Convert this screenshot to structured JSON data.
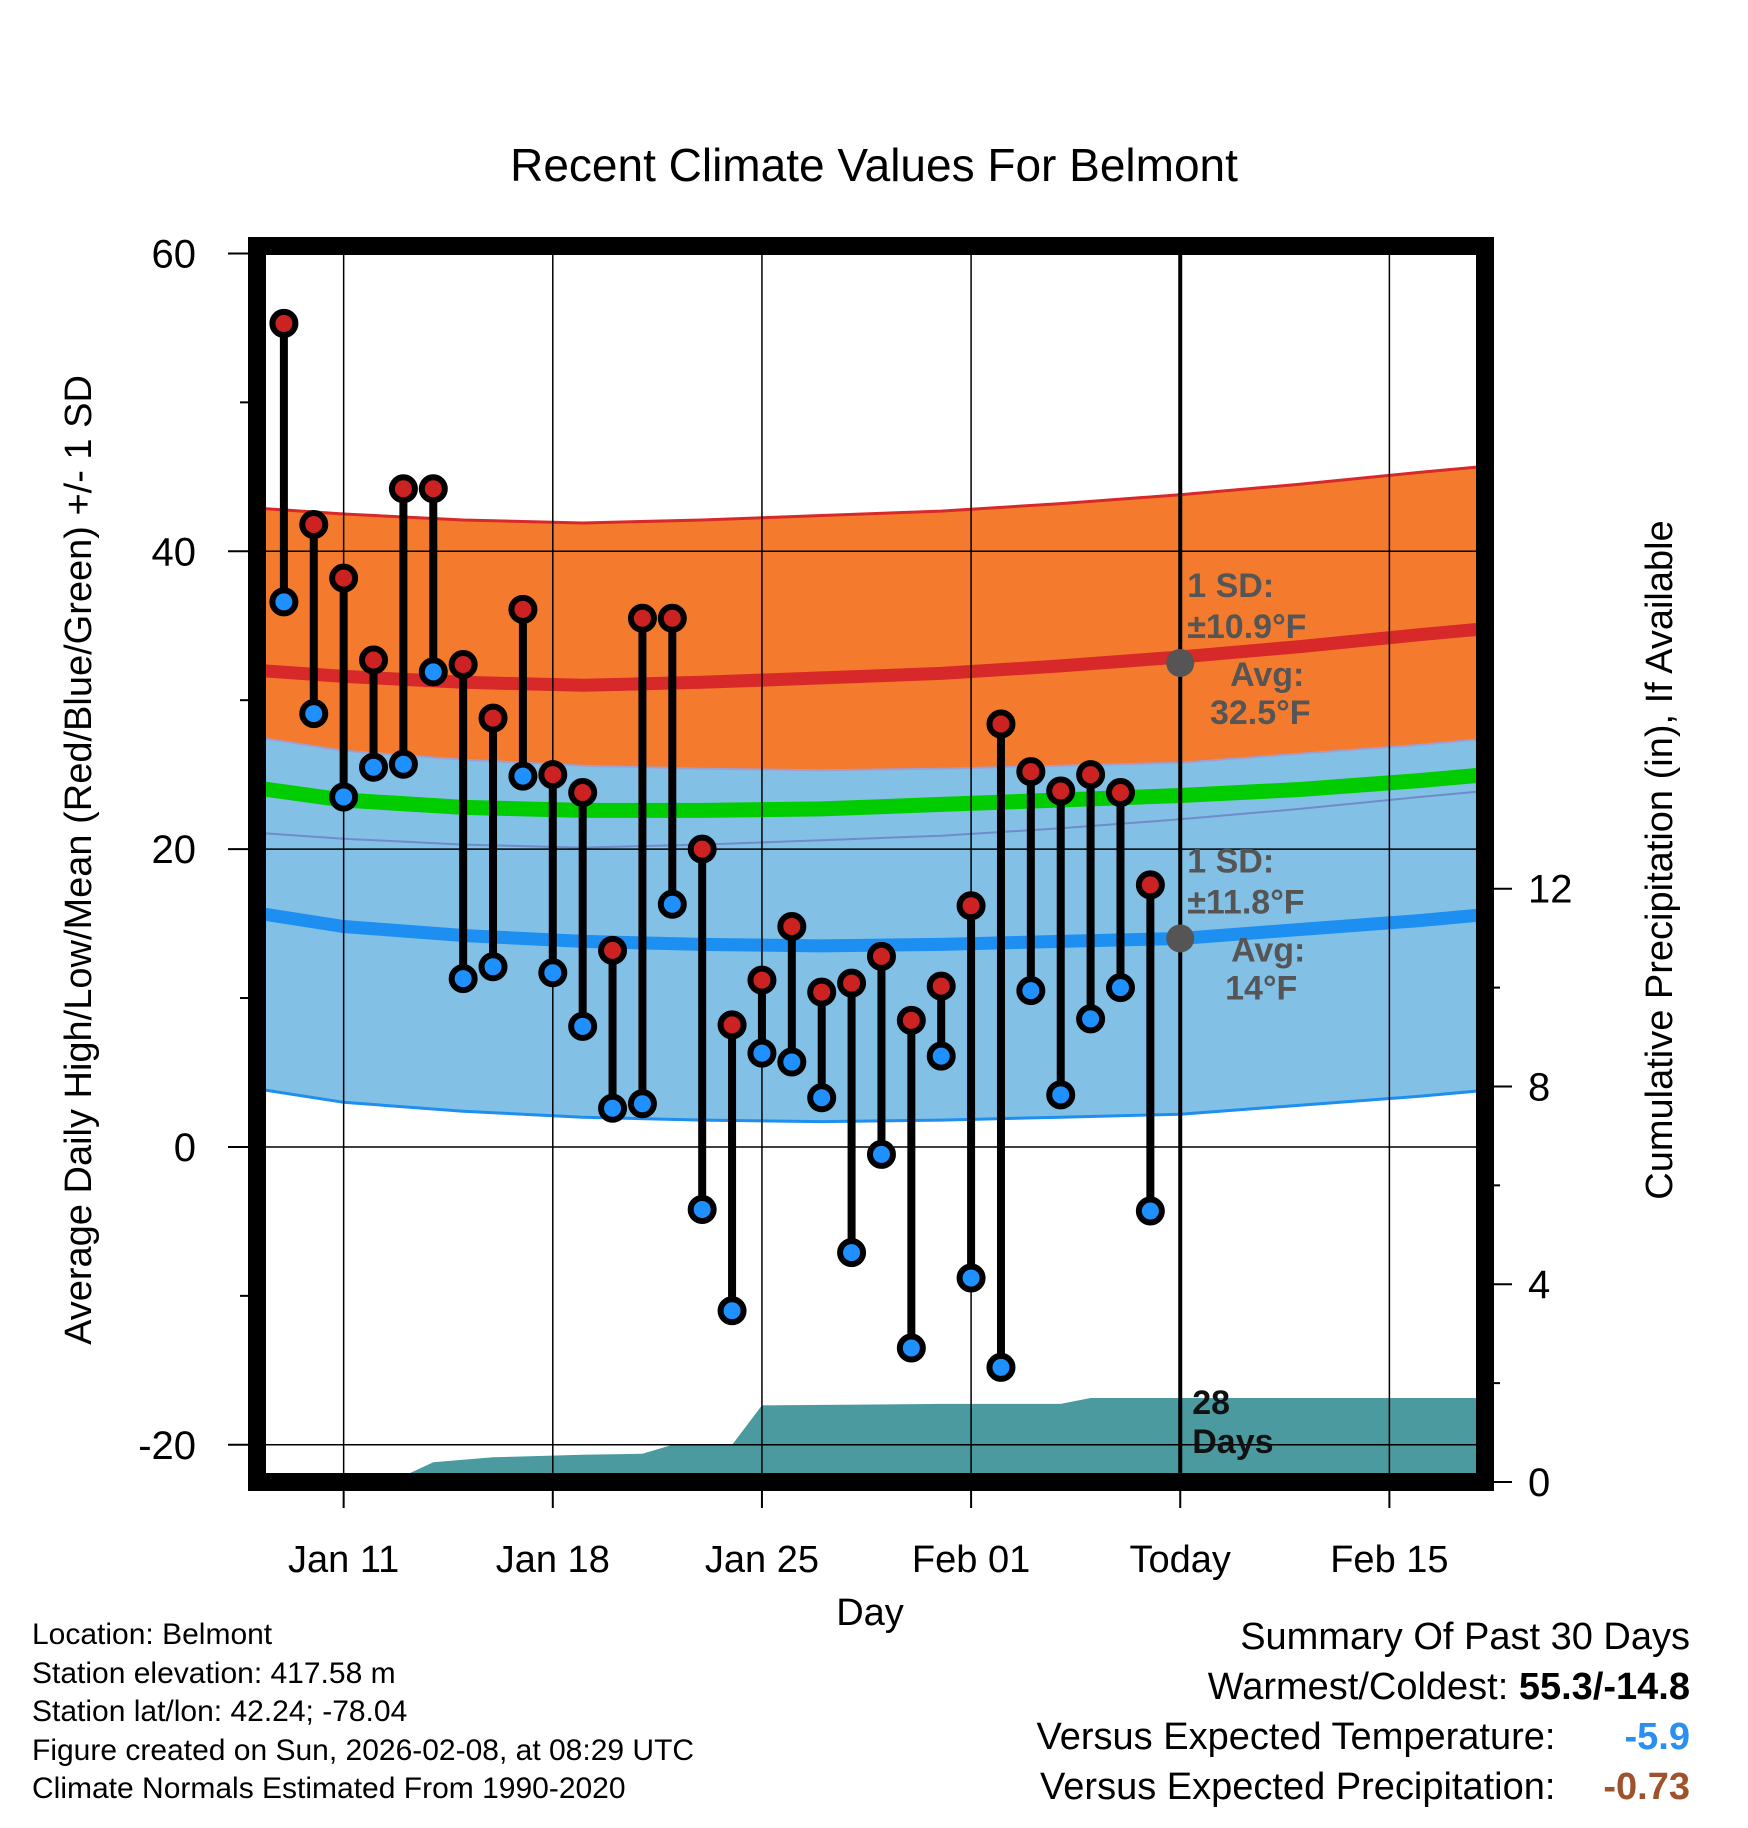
{
  "chart_data": {
    "type": "line",
    "title": "Recent Climate Values For Belmont",
    "xlabel": "Day",
    "ylabel": "Average Daily High/Low/Mean (Red/Blue/Green) +/- 1 SD",
    "y2label": "Cumulative Precipitation (in), If Available",
    "ylim": [
      -22.5,
      60.5
    ],
    "y2lim": [
      0,
      25
    ],
    "xlim": [
      -2.9,
      38.2
    ],
    "yticks": [
      "60",
      "40",
      "20",
      "0",
      "-20"
    ],
    "y2ticks": [
      "12",
      "8",
      "4",
      "0"
    ],
    "xticks": [
      {
        "day": 0,
        "label": "Jan 11"
      },
      {
        "day": 7,
        "label": "Jan 18"
      },
      {
        "day": 14,
        "label": "Jan 25"
      },
      {
        "day": 21,
        "label": "Feb 01"
      },
      {
        "day": 28,
        "label": "Today"
      },
      {
        "day": 35,
        "label": "Feb 15"
      }
    ],
    "today_day": 28,
    "observations": {
      "days": [
        -2,
        -1,
        0,
        1,
        2,
        3,
        4,
        5,
        6,
        7,
        8,
        9,
        10,
        11,
        12,
        13,
        14,
        15,
        16,
        17,
        18,
        19,
        20,
        21,
        22,
        23,
        24,
        25,
        26,
        27
      ],
      "high": [
        55.3,
        41.8,
        38.2,
        32.7,
        44.2,
        44.2,
        32.4,
        28.8,
        36.1,
        25.0,
        23.8,
        13.2,
        35.5,
        35.5,
        20.0,
        8.2,
        11.2,
        14.8,
        10.4,
        11.0,
        12.8,
        8.5,
        10.8,
        16.2,
        28.4,
        25.2,
        23.9,
        25.0,
        23.8,
        17.6
      ],
      "low": [
        36.6,
        29.1,
        23.5,
        25.5,
        25.7,
        31.9,
        11.3,
        12.1,
        24.9,
        11.7,
        8.1,
        2.6,
        2.9,
        16.3,
        -4.2,
        -11.0,
        6.3,
        5.7,
        3.3,
        -7.1,
        -0.5,
        -13.5,
        6.1,
        -8.8,
        -14.8,
        10.5,
        3.5,
        8.6,
        10.7,
        -4.3
      ]
    },
    "normals": {
      "days": [
        -2.9,
        0,
        4,
        8,
        12,
        16,
        20,
        24,
        28,
        32,
        36,
        38.2
      ],
      "avg_high": [
        32.0,
        31.6,
        31.2,
        31.0,
        31.2,
        31.5,
        31.8,
        32.3,
        32.9,
        33.6,
        34.4,
        34.8
      ],
      "high_sd": [
        10.9,
        10.9,
        10.9,
        10.9,
        10.9,
        10.9,
        10.9,
        10.9,
        10.9,
        10.9,
        10.9,
        10.9
      ],
      "avg_low": [
        15.7,
        14.8,
        14.2,
        13.8,
        13.6,
        13.5,
        13.6,
        13.8,
        14.0,
        14.6,
        15.2,
        15.6
      ],
      "low_sd": [
        11.8,
        11.8,
        11.8,
        11.8,
        11.8,
        11.8,
        11.8,
        11.8,
        11.8,
        11.8,
        11.8,
        11.8
      ],
      "avg_mean": [
        24.1,
        23.3,
        22.8,
        22.6,
        22.6,
        22.7,
        23.0,
        23.3,
        23.6,
        24.0,
        24.6,
        25.0
      ]
    },
    "precip": {
      "days": [
        -2.9,
        -1,
        0,
        2,
        3,
        5,
        8,
        10,
        11,
        13,
        14,
        20,
        24,
        25,
        38.2
      ],
      "cum": [
        0,
        0,
        0.12,
        0.12,
        0.4,
        0.5,
        0.55,
        0.57,
        0.75,
        0.75,
        1.55,
        1.58,
        1.58,
        1.7,
        1.7
      ]
    },
    "annotations": {
      "high_sd_label": "1 SD:",
      "high_sd_value": "±10.9°F",
      "high_avg_label": "Avg:",
      "high_avg_value": "32.5°F",
      "low_sd_label": "1 SD:",
      "low_sd_value": "±11.8°F",
      "low_avg_label": "Avg:",
      "low_avg_value": "14°F",
      "days_count": "28",
      "days_label": "Days"
    },
    "colors": {
      "high_band": "#f47a2e",
      "high_line": "#d7292a",
      "mean_band": "#8c0d12",
      "mean_line": "#00cc00",
      "low_band": "#82c0e6",
      "low_line": "#1d8ff0",
      "precip": "#4a9aa0",
      "high_marker": "#cc2222",
      "low_marker": "#1e90ff",
      "annotation": "#555555"
    }
  },
  "title": "Recent Climate Values For Belmont",
  "metadata": {
    "location": "Location: Belmont",
    "elevation": "Station elevation: 417.58 m",
    "latlon": "Station lat/lon: 42.24; -78.04",
    "created": "Figure created on Sun, 2026-02-08, at 08:29 UTC",
    "normals": "Climate Normals Estimated From 1990-2020"
  },
  "summary": {
    "heading": "Summary Of Past 30 Days",
    "warm_cold_label": "Warmest/Coldest:",
    "warm_cold_value": "55.3/-14.8",
    "temp_label": "Versus Expected Temperature:",
    "temp_value": "-5.9",
    "temp_color": "#2a8ff0",
    "precip_label": "Versus Expected Precipitation:",
    "precip_value": "-0.73",
    "precip_color": "#a0522d"
  }
}
